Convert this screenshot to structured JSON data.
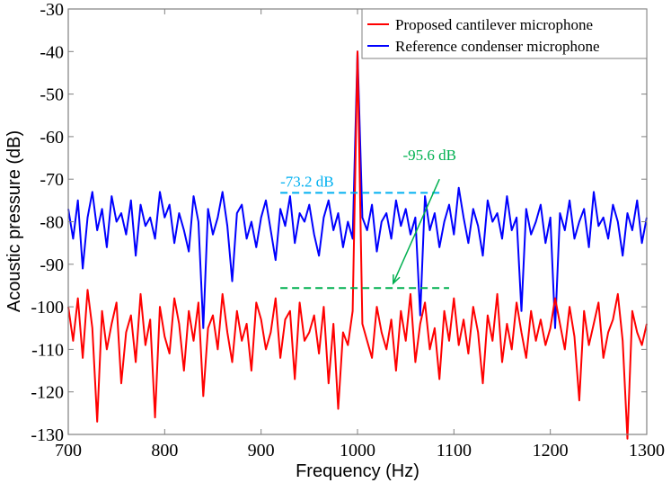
{
  "chart_data": {
    "type": "line",
    "title": "",
    "xlabel": "Frequency (Hz)",
    "ylabel": "Acoustic pressure (dB)",
    "xlim": [
      700,
      1300
    ],
    "ylim": [
      -130,
      -30
    ],
    "xticks": [
      700,
      800,
      900,
      1000,
      1100,
      1200,
      1300
    ],
    "xtick_labels": [
      "700",
      "800",
      "900",
      "1000",
      "1100",
      "1200",
      "1300"
    ],
    "yticks": [
      -30,
      -40,
      -50,
      -60,
      -70,
      -80,
      -90,
      -100,
      -110,
      -120,
      -130
    ],
    "ytick_labels": [
      "-30",
      "-40",
      "-50",
      "-60",
      "-70",
      "-80",
      "-90",
      "-100",
      "-110",
      "-120",
      "-130"
    ],
    "grid": false,
    "legend_position": "top-right",
    "x": [
      700,
      705,
      710,
      715,
      720,
      725,
      730,
      735,
      740,
      745,
      750,
      755,
      760,
      765,
      770,
      775,
      780,
      785,
      790,
      795,
      800,
      805,
      810,
      815,
      820,
      825,
      830,
      835,
      840,
      845,
      850,
      855,
      860,
      865,
      870,
      875,
      880,
      885,
      890,
      895,
      900,
      905,
      910,
      915,
      920,
      925,
      930,
      935,
      940,
      945,
      950,
      955,
      960,
      965,
      970,
      975,
      980,
      985,
      990,
      995,
      1000,
      1005,
      1010,
      1015,
      1020,
      1025,
      1030,
      1035,
      1040,
      1045,
      1050,
      1055,
      1060,
      1065,
      1070,
      1075,
      1080,
      1085,
      1090,
      1095,
      1100,
      1105,
      1110,
      1115,
      1120,
      1125,
      1130,
      1135,
      1140,
      1145,
      1150,
      1155,
      1160,
      1165,
      1170,
      1175,
      1180,
      1185,
      1190,
      1195,
      1200,
      1205,
      1210,
      1215,
      1220,
      1225,
      1230,
      1235,
      1240,
      1245,
      1250,
      1255,
      1260,
      1265,
      1270,
      1275,
      1280,
      1285,
      1290,
      1295,
      1300
    ],
    "series": [
      {
        "name": "Proposed cantilever microphone",
        "color": "#ff0000",
        "values": [
          -100,
          -108,
          -98,
          -112,
          -96,
          -105,
          -127,
          -101,
          -110,
          -104,
          -99,
          -118,
          -106,
          -102,
          -113,
          -97,
          -109,
          -103,
          -126,
          -100,
          -107,
          -111,
          -98,
          -104,
          -115,
          -101,
          -108,
          -99,
          -121,
          -105,
          -102,
          -110,
          -97,
          -106,
          -113,
          -101,
          -108,
          -104,
          -115,
          -99,
          -103,
          -110,
          -106,
          -98,
          -112,
          -103,
          -101,
          -117,
          -99,
          -108,
          -106,
          -102,
          -111,
          -100,
          -118,
          -104,
          -124,
          -106,
          -109,
          -101,
          -40,
          -104,
          -108,
          -112,
          -100,
          -106,
          -110,
          -103,
          -115,
          -101,
          -108,
          -97,
          -113,
          -104,
          -99,
          -110,
          -105,
          -117,
          -101,
          -108,
          -98,
          -109,
          -103,
          -111,
          -100,
          -106,
          -118,
          -102,
          -108,
          -97,
          -113,
          -104,
          -110,
          -99,
          -106,
          -112,
          -101,
          -108,
          -103,
          -109,
          -105,
          -98,
          -104,
          -110,
          -100,
          -107,
          -122,
          -101,
          -109,
          -104,
          -99,
          -112,
          -106,
          -103,
          -97,
          -108,
          -131,
          -101,
          -106,
          -109,
          -104
        ]
      },
      {
        "name": "Reference condenser microphone",
        "color": "#0000ff",
        "values": [
          -77,
          -84,
          -75,
          -91,
          -79,
          -73,
          -82,
          -77,
          -86,
          -74,
          -80,
          -78,
          -83,
          -75,
          -88,
          -76,
          -81,
          -79,
          -84,
          -73,
          -79,
          -76,
          -85,
          -78,
          -82,
          -87,
          -74,
          -80,
          -105,
          -77,
          -83,
          -79,
          -73,
          -81,
          -94,
          -78,
          -76,
          -84,
          -80,
          -86,
          -79,
          -75,
          -82,
          -89,
          -77,
          -81,
          -74,
          -85,
          -78,
          -80,
          -76,
          -83,
          -88,
          -79,
          -75,
          -82,
          -78,
          -86,
          -80,
          -84,
          -40,
          -79,
          -82,
          -76,
          -87,
          -80,
          -78,
          -84,
          -75,
          -81,
          -77,
          -83,
          -79,
          -102,
          -74,
          -82,
          -78,
          -86,
          -80,
          -76,
          -83,
          -72,
          -79,
          -85,
          -77,
          -81,
          -88,
          -75,
          -80,
          -78,
          -84,
          -74,
          -82,
          -79,
          -101,
          -77,
          -83,
          -80,
          -76,
          -85,
          -79,
          -105,
          -78,
          -82,
          -75,
          -84,
          -80,
          -77,
          -86,
          -73,
          -81,
          -79,
          -84,
          -76,
          -80,
          -88,
          -78,
          -82,
          -75,
          -85,
          -79
        ]
      }
    ],
    "annotations": [
      {
        "text": "-73.2 dB",
        "color": "#00b0f0",
        "line_y": -73.2,
        "line_x": [
          920,
          1085
        ],
        "style": "dashed"
      },
      {
        "text": "-95.6 dB",
        "color": "#00b050",
        "line_y": -95.6,
        "line_x": [
          920,
          1095
        ],
        "style": "dashed",
        "arrow_from": [
          1085,
          -70
        ],
        "arrow_to": [
          1037,
          -94.5
        ]
      }
    ]
  }
}
